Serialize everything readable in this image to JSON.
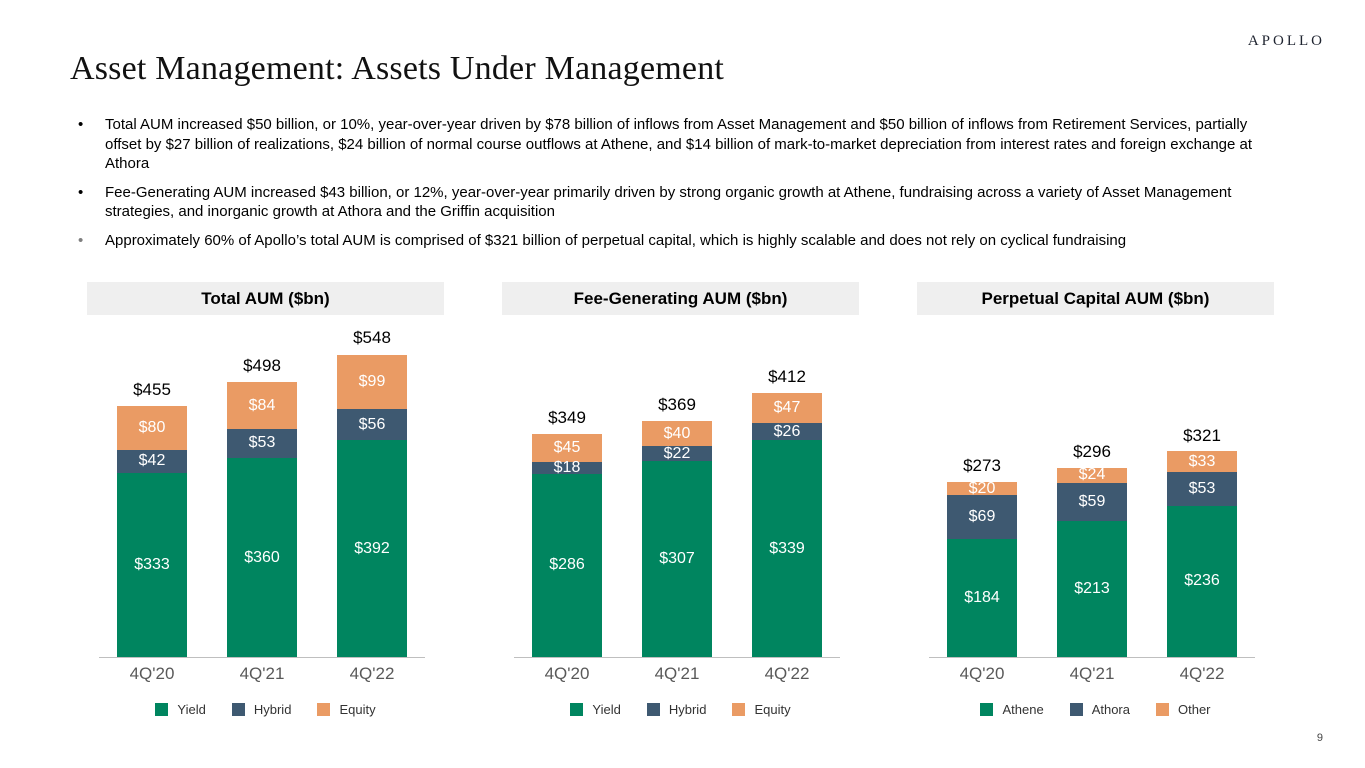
{
  "page": {
    "logo": "APOLLO",
    "title": "Asset Management: Assets Under Management",
    "page_number": "9"
  },
  "bullets": [
    {
      "marker": "•",
      "marker_color": "#000000",
      "text": "Total AUM increased $50 billion, or 10%, year-over-year driven by $78 billion of inflows from Asset Management and $50 billion of inflows from Retirement Services, partially offset by $27 billion of realizations, $24 billion of normal course outflows at Athene, and $14 billion of mark-to-market depreciation from interest rates and foreign exchange at Athora"
    },
    {
      "marker": "•",
      "marker_color": "#000000",
      "text": "Fee-Generating AUM increased $43 billion, or 12%, year-over-year primarily driven by strong organic growth at Athene, fundraising across a variety of Asset Management strategies, and inorganic growth at Athora and the Griffin acquisition"
    },
    {
      "marker": "•",
      "marker_color": "#7F7F7F",
      "text": "Approximately 60% of Apollo’s total AUM is comprised of $321 billion of perpetual capital, which is highly scalable and does not rely on cyclical fundraising"
    }
  ],
  "colors": {
    "green": "#00855F",
    "slate_blue": "#3E5971",
    "orange": "#EA9B64",
    "header_bg": "#EFEFEF",
    "axis_line": "#BFBFBF",
    "category_label": "#595959"
  },
  "chart_data": [
    {
      "type": "bar",
      "stacked": true,
      "title": "Total AUM ($bn)",
      "categories": [
        "4Q'20",
        "4Q'21",
        "4Q'22"
      ],
      "series": [
        {
          "name": "Yield",
          "color": "#00855F",
          "values": [
            333,
            360,
            392
          ],
          "labels": [
            "$333",
            "$360",
            "$392"
          ]
        },
        {
          "name": "Hybrid",
          "color": "#3E5971",
          "values": [
            42,
            53,
            56
          ],
          "labels": [
            "$42",
            "$53",
            "$56"
          ]
        },
        {
          "name": "Equity",
          "color": "#EA9B64",
          "values": [
            80,
            84,
            99
          ],
          "labels": [
            "$80",
            "$84",
            "$99"
          ]
        }
      ],
      "totals": [
        455,
        498,
        548
      ],
      "total_labels": [
        "$455",
        "$498",
        "$548"
      ],
      "ylim": [
        0,
        550
      ],
      "grid": false,
      "legend": [
        "Yield",
        "Hybrid",
        "Equity"
      ],
      "legend_position": "bottom"
    },
    {
      "type": "bar",
      "stacked": true,
      "title": "Fee-Generating AUM ($bn)",
      "categories": [
        "4Q'20",
        "4Q'21",
        "4Q'22"
      ],
      "series": [
        {
          "name": "Yield",
          "color": "#00855F",
          "values": [
            286,
            307,
            339
          ],
          "labels": [
            "$286",
            "$307",
            "$339"
          ]
        },
        {
          "name": "Hybrid",
          "color": "#3E5971",
          "values": [
            18,
            22,
            26
          ],
          "labels": [
            "$18",
            "$22",
            "$26"
          ]
        },
        {
          "name": "Equity",
          "color": "#EA9B64",
          "values": [
            45,
            40,
            47
          ],
          "labels": [
            "$45",
            "$40",
            "$47"
          ]
        }
      ],
      "totals": [
        349,
        369,
        412
      ],
      "total_labels": [
        "$349",
        "$369",
        "$412"
      ],
      "ylim": [
        0,
        475
      ],
      "grid": false,
      "legend": [
        "Yield",
        "Hybrid",
        "Equity"
      ],
      "legend_position": "bottom"
    },
    {
      "type": "bar",
      "stacked": true,
      "title": "Perpetual Capital AUM ($bn)",
      "categories": [
        "4Q'20",
        "4Q'21",
        "4Q'22"
      ],
      "series": [
        {
          "name": "Athene",
          "color": "#00855F",
          "values": [
            184,
            213,
            236
          ],
          "labels": [
            "$184",
            "$213",
            "$236"
          ]
        },
        {
          "name": "Athora",
          "color": "#3E5971",
          "values": [
            69,
            59,
            53
          ],
          "labels": [
            "$69",
            "$59",
            "$53"
          ]
        },
        {
          "name": "Other",
          "color": "#EA9B64",
          "values": [
            20,
            24,
            33
          ],
          "labels": [
            "$20",
            "$24",
            "$33"
          ]
        }
      ],
      "totals": [
        273,
        296,
        321
      ],
      "total_labels": [
        "$273",
        "$296",
        "$321"
      ],
      "ylim": [
        0,
        475
      ],
      "grid": false,
      "legend": [
        "Athene",
        "Athora",
        "Other"
      ],
      "legend_position": "bottom"
    }
  ]
}
